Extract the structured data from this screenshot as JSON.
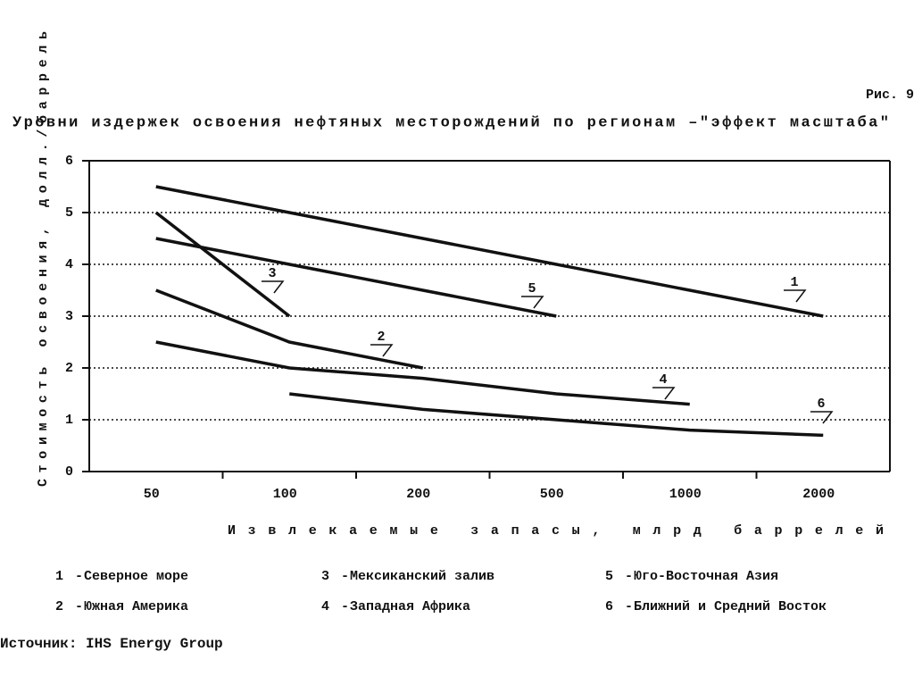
{
  "figure_label": "Рис. 9",
  "chart_data": {
    "type": "line",
    "title": "Уровни издержек освоения нефтяных месторождений по регионам –\"эффект масштаба\"",
    "y_label": "Стоимость освоения, долл./баррель",
    "x_label": "Извлекаемые запасы, млрд баррелей",
    "categories": [
      "50",
      "100",
      "200",
      "500",
      "1000",
      "2000"
    ],
    "ylim": [
      0,
      6
    ],
    "yticks": [
      0,
      1,
      2,
      3,
      4,
      5,
      6
    ],
    "grid": true,
    "legend_separator": "-",
    "series": [
      {
        "label": "1",
        "name": "Северное море",
        "color": "#111111",
        "values": [
          5.5,
          5.0,
          4.5,
          4.0,
          3.5,
          3.0
        ]
      },
      {
        "label": "2",
        "name": "Южная Америка",
        "color": "#111111",
        "values": [
          3.5,
          2.5,
          2.0,
          null,
          null,
          null
        ]
      },
      {
        "label": "3",
        "name": "Мексиканский залив",
        "color": "#111111",
        "values": [
          5.0,
          3.0,
          null,
          null,
          null,
          null
        ]
      },
      {
        "label": "4",
        "name": "Западная Африка",
        "color": "#111111",
        "values": [
          2.5,
          2.0,
          1.8,
          1.5,
          1.3,
          null
        ]
      },
      {
        "label": "5",
        "name": "Юго-Восточная Азия",
        "color": "#111111",
        "values": [
          4.5,
          4.0,
          3.5,
          3.0,
          null,
          null
        ]
      },
      {
        "label": "6",
        "name": "Ближний и Средний Восток",
        "color": "#111111",
        "values": [
          null,
          1.5,
          1.2,
          1.0,
          0.8,
          0.7
        ]
      }
    ]
  },
  "source": "Источник: IHS Energy Group"
}
